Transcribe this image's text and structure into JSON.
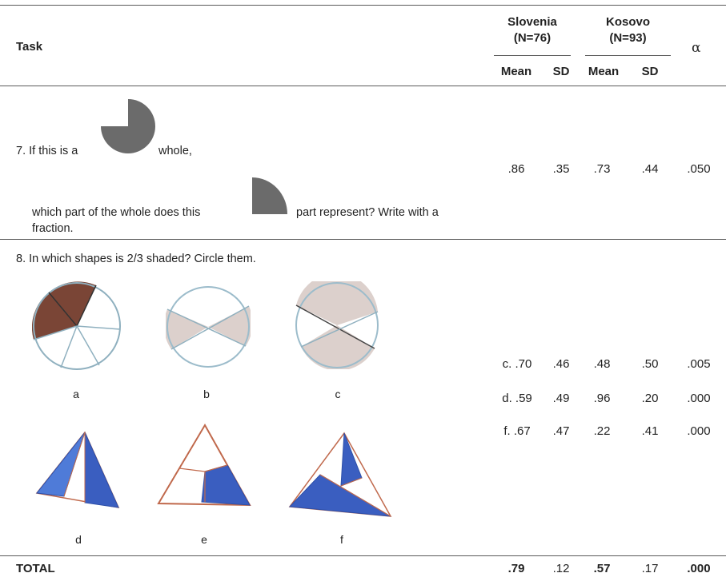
{
  "header": {
    "task": "Task",
    "slovenia": {
      "name": "Slovenia",
      "n": "(N=76)"
    },
    "kosovo": {
      "name": "Kosovo",
      "n": "(N=93)"
    },
    "mean": "Mean",
    "sd": "SD",
    "alpha": "α"
  },
  "task7": {
    "line1a": "7.  If this is a",
    "line1b": "whole,",
    "line2a": "which part of the whole does this",
    "line2b": "part represent? Write with a",
    "line3": "fraction.",
    "row": {
      "sl_mean": ".86",
      "sl_sd": ".35",
      "ko_mean": ".73",
      "ko_sd": ".44",
      "alpha": ".050"
    }
  },
  "task8": {
    "question": "8.  In which shapes is 2/3 shaded? Circle them.",
    "labels": [
      "a",
      "b",
      "c",
      "d",
      "e",
      "f"
    ],
    "rows": [
      {
        "sl_mean": "c. .70",
        "sl_sd": ".46",
        "ko_mean": ".48",
        "ko_sd": ".50",
        "alpha": ".005"
      },
      {
        "sl_mean": "d. .59",
        "sl_sd": ".49",
        "ko_mean": ".96",
        "ko_sd": ".20",
        "alpha": ".000"
      },
      {
        "sl_mean": "f. .67",
        "sl_sd": ".47",
        "ko_mean": ".22",
        "ko_sd": ".41",
        "alpha": ".000"
      }
    ]
  },
  "total": {
    "label": "TOTAL",
    "sl_mean": ".79",
    "sl_sd": ".12",
    "ko_mean": ".57",
    "ko_sd": ".17",
    "alpha": ".000"
  },
  "colors": {
    "pie_brown": "#7a4536",
    "pie_beige": "#dcd0cc",
    "triangle_blue": "#3a5ec0",
    "shape_gray": "#6b6b6b"
  }
}
